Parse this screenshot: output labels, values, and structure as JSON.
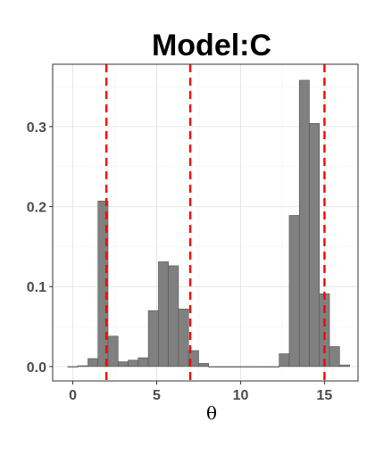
{
  "chart_data": {
    "type": "bar",
    "title": "Model:C",
    "xlabel": "θ",
    "ylabel": "",
    "xlim": [
      -1.2,
      17.0
    ],
    "ylim": [
      -0.018,
      0.378
    ],
    "x_ticks": [
      0,
      5,
      10,
      15
    ],
    "y_ticks": [
      0.0,
      0.1,
      0.2,
      0.3
    ],
    "x_tick_labels": [
      "0",
      "5",
      "10",
      "15"
    ],
    "y_tick_labels": [
      "0.0",
      "0.1",
      "0.2",
      "0.3"
    ],
    "grid": true,
    "bin_width": 0.6,
    "bins": [
      {
        "x0": -0.3,
        "x1": 0.3,
        "value": 0.0
      },
      {
        "x0": 0.3,
        "x1": 0.9,
        "value": 0.001
      },
      {
        "x0": 0.9,
        "x1": 1.5,
        "value": 0.01
      },
      {
        "x0": 1.5,
        "x1": 2.1,
        "value": 0.207
      },
      {
        "x0": 2.1,
        "x1": 2.7,
        "value": 0.038
      },
      {
        "x0": 2.7,
        "x1": 3.3,
        "value": 0.006
      },
      {
        "x0": 3.3,
        "x1": 3.9,
        "value": 0.008
      },
      {
        "x0": 3.9,
        "x1": 4.5,
        "value": 0.011
      },
      {
        "x0": 4.5,
        "x1": 5.1,
        "value": 0.07
      },
      {
        "x0": 5.1,
        "x1": 5.7,
        "value": 0.131
      },
      {
        "x0": 5.7,
        "x1": 6.3,
        "value": 0.126
      },
      {
        "x0": 6.3,
        "x1": 6.9,
        "value": 0.072
      },
      {
        "x0": 6.9,
        "x1": 7.5,
        "value": 0.02
      },
      {
        "x0": 7.5,
        "x1": 8.1,
        "value": 0.004
      },
      {
        "x0": 8.1,
        "x1": 8.7,
        "value": 0.0
      },
      {
        "x0": 8.7,
        "x1": 9.3,
        "value": 0.0
      },
      {
        "x0": 9.3,
        "x1": 9.9,
        "value": 0.0
      },
      {
        "x0": 9.9,
        "x1": 10.5,
        "value": 0.0
      },
      {
        "x0": 10.5,
        "x1": 11.1,
        "value": 0.0
      },
      {
        "x0": 11.1,
        "x1": 11.7,
        "value": 0.0
      },
      {
        "x0": 11.7,
        "x1": 12.3,
        "value": 0.0
      },
      {
        "x0": 12.3,
        "x1": 12.9,
        "value": 0.016
      },
      {
        "x0": 12.9,
        "x1": 13.5,
        "value": 0.189
      },
      {
        "x0": 13.5,
        "x1": 14.1,
        "value": 0.358
      },
      {
        "x0": 14.1,
        "x1": 14.7,
        "value": 0.304
      },
      {
        "x0": 14.7,
        "x1": 15.3,
        "value": 0.091
      },
      {
        "x0": 15.3,
        "x1": 15.9,
        "value": 0.025
      },
      {
        "x0": 15.9,
        "x1": 16.5,
        "value": 0.002
      }
    ],
    "vlines": [
      2,
      7,
      15
    ],
    "colors": {
      "bar": "#808080",
      "vline": "#ff0000"
    }
  }
}
